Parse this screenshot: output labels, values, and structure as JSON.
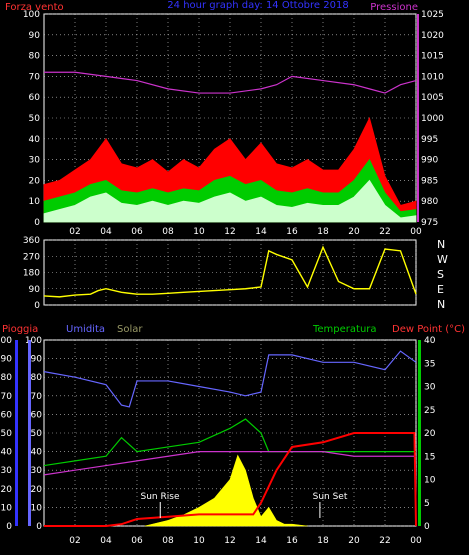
{
  "chart_data": [
    {
      "type": "line",
      "title": "24 hour graph day: 14 Ottobre 2018",
      "left_label": "Forza vento",
      "right_label": "Pressione",
      "colors": {
        "gust": "#ff0000",
        "avg": "#00cc00",
        "speed": "#ccffcc",
        "pressure": "#cc33cc",
        "title": "#3333ff",
        "left_axis": "#ff3333",
        "right_axis": "#cc33cc",
        "grid": "#cccccc"
      },
      "x_ticks": [
        "02",
        "04",
        "06",
        "08",
        "10",
        "12",
        "14",
        "16",
        "18",
        "20",
        "22",
        "00"
      ],
      "y_left": {
        "min": 0,
        "max": 100,
        "ticks": [
          0,
          10,
          20,
          30,
          40,
          50,
          60,
          70,
          80,
          90,
          100
        ]
      },
      "y_right": {
        "min": 975,
        "max": 1025,
        "ticks": [
          975,
          980,
          985,
          990,
          995,
          1000,
          1005,
          1010,
          1015,
          1020,
          1025
        ]
      },
      "series": [
        {
          "key": "gust",
          "x": [
            0,
            1,
            2,
            3,
            4,
            5,
            6,
            7,
            8,
            9,
            10,
            11,
            12,
            13,
            14,
            15,
            16,
            17,
            18,
            19,
            20,
            21,
            22,
            23,
            24
          ],
          "values": [
            18,
            20,
            25,
            30,
            40,
            28,
            26,
            30,
            24,
            30,
            26,
            35,
            40,
            30,
            38,
            28,
            26,
            30,
            25,
            25,
            35,
            50,
            22,
            8,
            10
          ]
        },
        {
          "key": "avg",
          "x": [
            0,
            1,
            2,
            3,
            4,
            5,
            6,
            7,
            8,
            9,
            10,
            11,
            12,
            13,
            14,
            15,
            16,
            17,
            18,
            19,
            20,
            21,
            22,
            23,
            24
          ],
          "values": [
            10,
            12,
            14,
            18,
            20,
            15,
            14,
            16,
            14,
            16,
            15,
            20,
            22,
            18,
            20,
            15,
            14,
            16,
            14,
            14,
            20,
            30,
            14,
            5,
            6
          ]
        },
        {
          "key": "speed",
          "x": [
            0,
            1,
            2,
            3,
            4,
            5,
            6,
            7,
            8,
            9,
            10,
            11,
            12,
            13,
            14,
            15,
            16,
            17,
            18,
            19,
            20,
            21,
            22,
            23,
            24
          ],
          "values": [
            4,
            6,
            8,
            12,
            14,
            9,
            8,
            10,
            8,
            10,
            9,
            12,
            14,
            10,
            12,
            8,
            7,
            9,
            8,
            8,
            12,
            20,
            8,
            2,
            3
          ]
        },
        {
          "key": "pressure",
          "x": [
            0,
            2,
            4,
            6,
            8,
            10,
            12,
            14,
            15,
            16,
            18,
            20,
            21,
            22,
            23,
            24
          ],
          "values": [
            1011,
            1011,
            1010,
            1009,
            1007,
            1006,
            1006,
            1007,
            1008,
            1010,
            1009,
            1008,
            1007,
            1006,
            1008,
            1009
          ]
        }
      ]
    },
    {
      "type": "line",
      "right_letters": [
        "N",
        "W",
        "S",
        "E",
        "N"
      ],
      "colors": {
        "direction": "#ffff00"
      },
      "y_ticks": [
        0,
        90,
        180,
        270,
        360
      ],
      "series": [
        {
          "key": "direction",
          "x": [
            0,
            1,
            2,
            3,
            3.5,
            4,
            5,
            6,
            7,
            8,
            9,
            10,
            11,
            12,
            13,
            14,
            14.5,
            15,
            16,
            17,
            18,
            19,
            20,
            21,
            22,
            23,
            24
          ],
          "values": [
            50,
            45,
            55,
            60,
            80,
            90,
            70,
            60,
            60,
            65,
            70,
            75,
            80,
            85,
            90,
            100,
            300,
            280,
            250,
            100,
            320,
            130,
            90,
            90,
            310,
            300,
            60
          ]
        }
      ]
    },
    {
      "type": "line",
      "labels": {
        "rain": "Pioggia",
        "hum": "Umidita",
        "solar": "Solar",
        "temp": "Temperatura",
        "dew": "Dew Point (°C)",
        "sunrise": "Sun Rise",
        "sunset": "Sun Set"
      },
      "colors": {
        "rain": "#ff0000",
        "hum": "#6666ff",
        "solar": "#ffff00",
        "temp": "#00cc00",
        "dew": "#cc33cc",
        "left_axis": "#ff3333",
        "right_axis": "#00cc00"
      },
      "x_ticks": [
        "02",
        "04",
        "06",
        "08",
        "10",
        "12",
        "14",
        "16",
        "18",
        "20",
        "22",
        "00"
      ],
      "y_left": {
        "min": 0,
        "max": 100,
        "ticks": [
          0,
          10,
          20,
          30,
          40,
          50,
          60,
          70,
          80,
          90,
          100
        ]
      },
      "y_right": {
        "min": 0,
        "max": 40,
        "ticks": [
          0,
          5,
          10,
          15,
          20,
          25,
          30,
          35,
          40
        ]
      },
      "series": [
        {
          "key": "hum",
          "x": [
            0,
            2,
            4,
            5,
            5.5,
            6,
            8,
            10,
            12,
            13,
            14,
            14.5,
            16,
            18,
            20,
            22,
            23,
            24
          ],
          "values": [
            83,
            80,
            76,
            65,
            64,
            78,
            78,
            75,
            72,
            70,
            72,
            92,
            92,
            88,
            88,
            84,
            94,
            88
          ]
        },
        {
          "key": "temp",
          "x": [
            0,
            2,
            4,
            5,
            6,
            8,
            10,
            12,
            13,
            14,
            14.5,
            16,
            18,
            20,
            22,
            24
          ],
          "values": [
            13,
            14,
            15,
            19,
            16,
            17,
            18,
            21,
            23,
            20,
            16,
            16,
            16,
            16,
            16,
            16
          ]
        },
        {
          "key": "dew",
          "x": [
            0,
            2,
            4,
            6,
            8,
            10,
            12,
            14,
            16,
            18,
            20,
            22,
            24
          ],
          "values": [
            11,
            12,
            13,
            14,
            15,
            16,
            16,
            16,
            16,
            16,
            15,
            15,
            15
          ]
        },
        {
          "key": "rain",
          "x": [
            0,
            4,
            5,
            6,
            8,
            10,
            12,
            13.5,
            14,
            15,
            16,
            18,
            20,
            22,
            23.9,
            24
          ],
          "values": [
            0,
            0,
            0.4,
            1.5,
            2.0,
            2.5,
            2.5,
            2.5,
            5,
            12,
            17,
            18,
            20,
            20,
            20,
            0
          ]
        },
        {
          "key": "solar",
          "x": [
            6.5,
            8,
            9,
            10,
            11,
            12,
            12.5,
            13,
            13.5,
            14,
            14.5,
            15,
            15.5,
            16,
            17
          ],
          "values": [
            0,
            3,
            6,
            10,
            15,
            25,
            38,
            30,
            15,
            5,
            10,
            3,
            1,
            1,
            0
          ]
        }
      ]
    }
  ]
}
